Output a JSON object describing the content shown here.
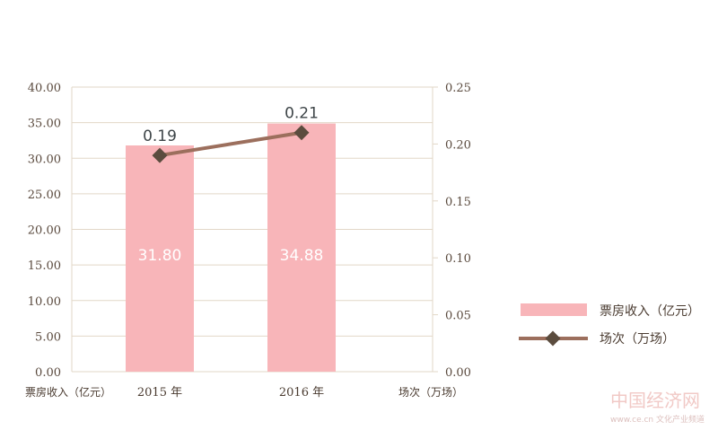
{
  "chart_data": {
    "type": "bar",
    "categories": [
      "2015 年",
      "2016 年"
    ],
    "series": [
      {
        "name": "票房收入（亿元）",
        "type": "bar",
        "axis": "left",
        "values": [
          31.8,
          34.88
        ],
        "labels": [
          "31.80",
          "34.88"
        ],
        "color": "#f8b5b9"
      },
      {
        "name": "场次（万场）",
        "type": "line",
        "axis": "right",
        "values": [
          0.19,
          0.21
        ],
        "labels": [
          "0.19",
          "0.21"
        ],
        "color": "#9c6f5d",
        "marker_color": "#5b4c3e"
      }
    ],
    "y_left": {
      "min": 0,
      "max": 40,
      "ticks": [
        "0.00",
        "5.00",
        "10.00",
        "15.00",
        "20.00",
        "25.00",
        "30.00",
        "35.00",
        "40.00"
      ],
      "label": "票房收入（亿元）"
    },
    "y_right": {
      "min": 0,
      "max": 0.25,
      "ticks": [
        "0.00",
        "0.05",
        "0.10",
        "0.15",
        "0.20",
        "0.25"
      ],
      "label": "场次（万场）"
    },
    "grid": true,
    "legend_position": "right"
  },
  "watermark": {
    "main": "中国经济网",
    "sub": "www.ce.cn 文化产业频道"
  },
  "colors": {
    "grid": "#e2d7c7",
    "axis_text": "#5a4a3e"
  }
}
